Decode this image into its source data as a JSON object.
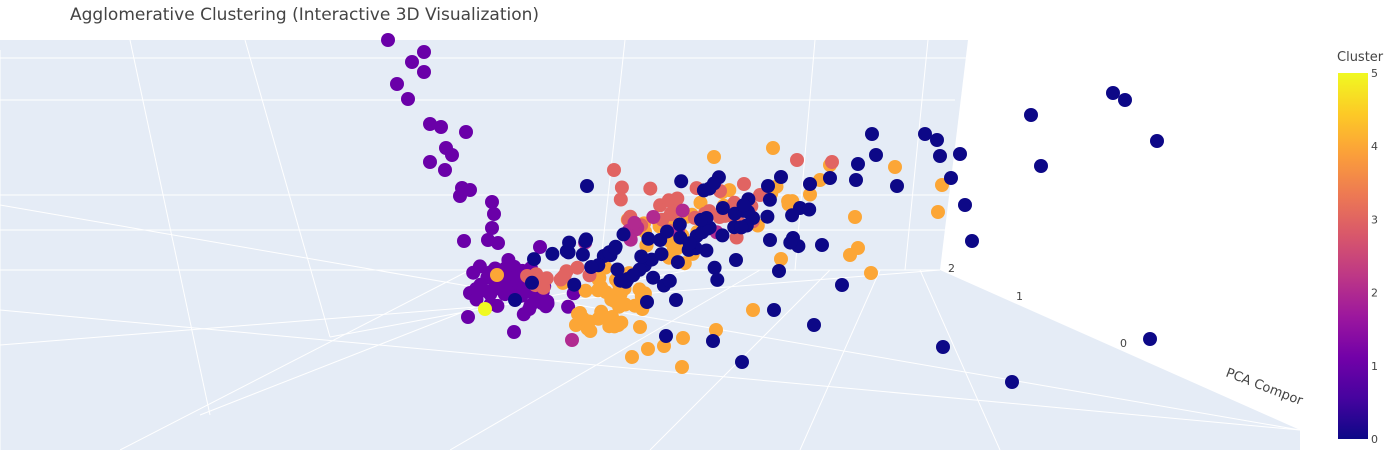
{
  "title": "Agglomerative Clustering (Interactive 3D Visualization)",
  "chart_data": {
    "type": "scatter",
    "subtype": "3d",
    "axis_labels": {
      "visible_axis_label": "PCA Compor"
    },
    "axis_tick_labels": [
      "2",
      "1",
      "0"
    ],
    "colorbar": {
      "title": "Cluster",
      "min": 0,
      "max": 5,
      "tick_labels": [
        "5",
        "4",
        "3",
        "2",
        "1",
        "0"
      ],
      "colorscale": [
        "#0d0887",
        "#46039f",
        "#7201a8",
        "#9c179e",
        "#bd3786",
        "#d8576b",
        "#ed7953",
        "#fb9f3a",
        "#fdca26",
        "#f0f921"
      ]
    },
    "cluster_colors": {
      "0": "#0d0887",
      "1": "#6a00a8",
      "2": "#b12a90",
      "3": "#e16462",
      "4": "#fca636",
      "5": "#f0f921"
    },
    "background_color": "#e5ecf6",
    "grid": true
  }
}
